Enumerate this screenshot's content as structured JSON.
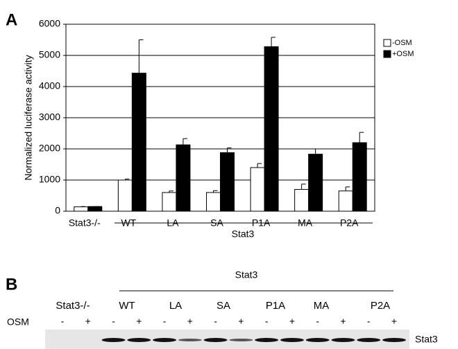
{
  "panel_labels": [
    "A",
    "B"
  ],
  "chart_data": {
    "type": "bar",
    "ylabel": "Normalized luciferase activity",
    "categories": [
      "Stat3-/-",
      "WT",
      "LA",
      "SA",
      "P1A",
      "MA",
      "P2A"
    ],
    "group_label": "Stat3",
    "series": [
      {
        "name": "-OSM",
        "color": "#ffffff",
        "values": [
          140,
          1000,
          600,
          600,
          1400,
          700,
          650
        ],
        "errors": [
          10,
          30,
          50,
          60,
          130,
          170,
          130
        ]
      },
      {
        "name": "+OSM",
        "color": "#000000",
        "values": [
          150,
          4430,
          2130,
          1880,
          5280,
          1830,
          2200
        ],
        "errors": [
          0,
          1070,
          200,
          150,
          300,
          170,
          330
        ]
      }
    ],
    "ylim": [
      0,
      6000
    ],
    "yticks": [
      0,
      1000,
      2000,
      3000,
      4000,
      5000,
      6000
    ],
    "grid": true,
    "legend": "upper right"
  },
  "blot": {
    "title": "Stat3",
    "lanes": [
      "Stat3-/-",
      "WT",
      "LA",
      "SA",
      "P1A",
      "MA",
      "P2A"
    ],
    "treatment_label": "OSM",
    "treatments": [
      "-",
      "+",
      "-",
      "+",
      "-",
      "+",
      "-",
      "+",
      "-",
      "+",
      "-",
      "+",
      "-",
      "+"
    ],
    "band_label": "Stat3"
  }
}
